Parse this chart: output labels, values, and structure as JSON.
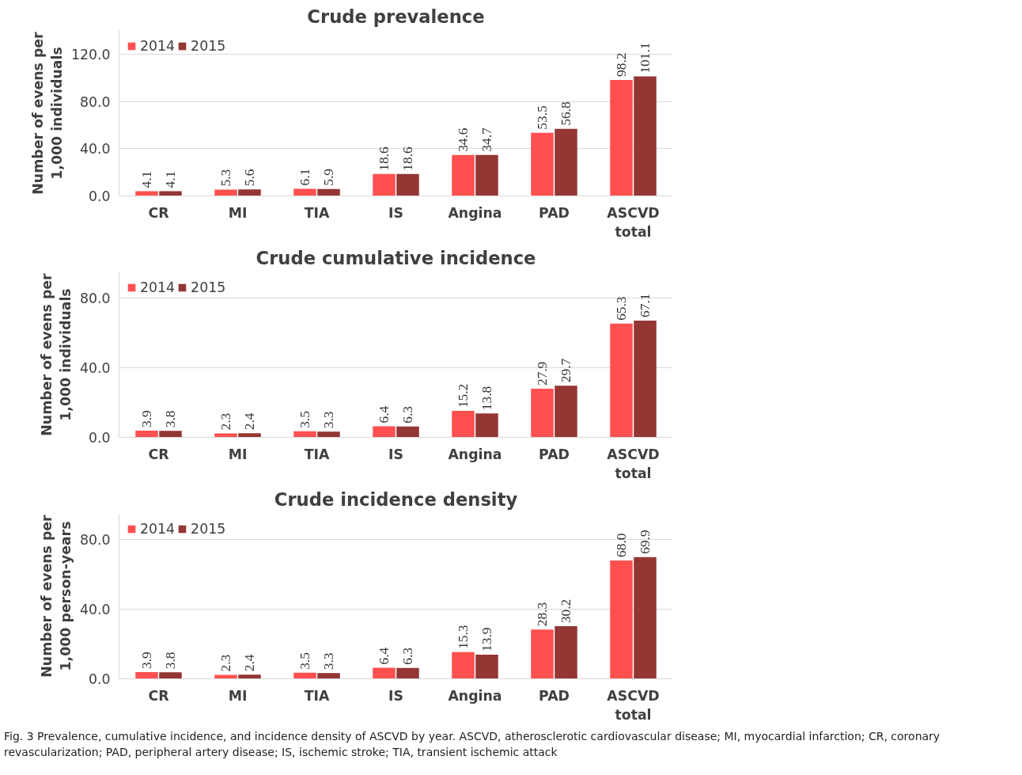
{
  "chart_data": [
    {
      "type": "bar",
      "title": "Crude prevalence",
      "ylabel": "Number of evens per 1,000 individuals",
      "categories": [
        "CR",
        "MI",
        "TIA",
        "IS",
        "Angina",
        "PAD",
        "ASCVD total"
      ],
      "series": [
        {
          "name": "2014",
          "color": "#ff5050",
          "values": [
            4.1,
            5.3,
            6.1,
            18.6,
            34.6,
            53.5,
            98.2
          ],
          "value_labels": [
            "4.1",
            "5.3",
            "6.1",
            "18.6",
            "34.6",
            "53.5",
            "98.2"
          ]
        },
        {
          "name": "2015",
          "color": "#943634",
          "values": [
            4.1,
            5.6,
            5.9,
            18.6,
            34.7,
            56.8,
            101.1
          ],
          "value_labels": [
            "4.1",
            "5.6",
            "5.9",
            "18.6",
            "34.7",
            "56.8",
            "101.1"
          ]
        }
      ],
      "ylim": [
        0,
        140
      ],
      "yticks": [
        {
          "value": 0,
          "label": "0.0"
        },
        {
          "value": 40,
          "label": "40.0"
        },
        {
          "value": 80,
          "label": "80.0"
        },
        {
          "value": 120,
          "label": "120.0"
        }
      ],
      "grid": "y",
      "legend": "top left"
    },
    {
      "type": "bar",
      "title": "Crude cumulative incidence",
      "ylabel": "Number of evens per 1,000 individuals",
      "categories": [
        "CR",
        "MI",
        "TIA",
        "IS",
        "Angina",
        "PAD",
        "ASCVD total"
      ],
      "series": [
        {
          "name": "2014",
          "color": "#ff5050",
          "values": [
            3.9,
            2.3,
            3.5,
            6.4,
            15.2,
            27.9,
            65.3
          ],
          "value_labels": [
            "3.9",
            "2.3",
            "3.5",
            "6.4",
            "15.2",
            "27.9",
            "65.3"
          ]
        },
        {
          "name": "2015",
          "color": "#943634",
          "values": [
            3.8,
            2.4,
            3.3,
            6.3,
            13.8,
            29.7,
            67.1
          ],
          "value_labels": [
            "3.8",
            "2.4",
            "3.3",
            "6.3",
            "13.8",
            "29.7",
            "67.1"
          ]
        }
      ],
      "ylim": [
        0,
        95
      ],
      "yticks": [
        {
          "value": 0,
          "label": "0.0"
        },
        {
          "value": 40,
          "label": "40.0"
        },
        {
          "value": 80,
          "label": "80.0"
        }
      ],
      "grid": "y",
      "legend": "top left"
    },
    {
      "type": "bar",
      "title": "Crude incidence density",
      "ylabel": "Number of evens per 1,000 person-years",
      "categories": [
        "CR",
        "MI",
        "TIA",
        "IS",
        "Angina",
        "PAD",
        "ASCVD total"
      ],
      "series": [
        {
          "name": "2014",
          "color": "#ff5050",
          "values": [
            3.9,
            2.3,
            3.5,
            6.4,
            15.3,
            28.3,
            68.0
          ],
          "value_labels": [
            "3.9",
            "2.3",
            "3.5",
            "6.4",
            "15.3",
            "28.3",
            "68.0"
          ]
        },
        {
          "name": "2015",
          "color": "#943634",
          "values": [
            3.8,
            2.4,
            3.3,
            6.3,
            13.9,
            30.2,
            69.9
          ],
          "value_labels": [
            "3.8",
            "2.4",
            "3.3",
            "6.3",
            "13.9",
            "30.2",
            "69.9"
          ]
        }
      ],
      "ylim": [
        0,
        95
      ],
      "yticks": [
        {
          "value": 0,
          "label": "0.0"
        },
        {
          "value": 40,
          "label": "40.0"
        },
        {
          "value": 80,
          "label": "80.0"
        }
      ],
      "grid": "y",
      "legend": "top left",
      "annotations": [
        "Fig. 3 Prevalence, cumulative incidence, and incidence density of ASCVD by year. ASCVD, atherosclerotic cardiovascular disease; MI, myocardial infarction; CR, coronary revascularization; PAD, peripheral artery disease; IS, ischemic stroke; TIA, transient ischemic attack"
      ]
    }
  ]
}
